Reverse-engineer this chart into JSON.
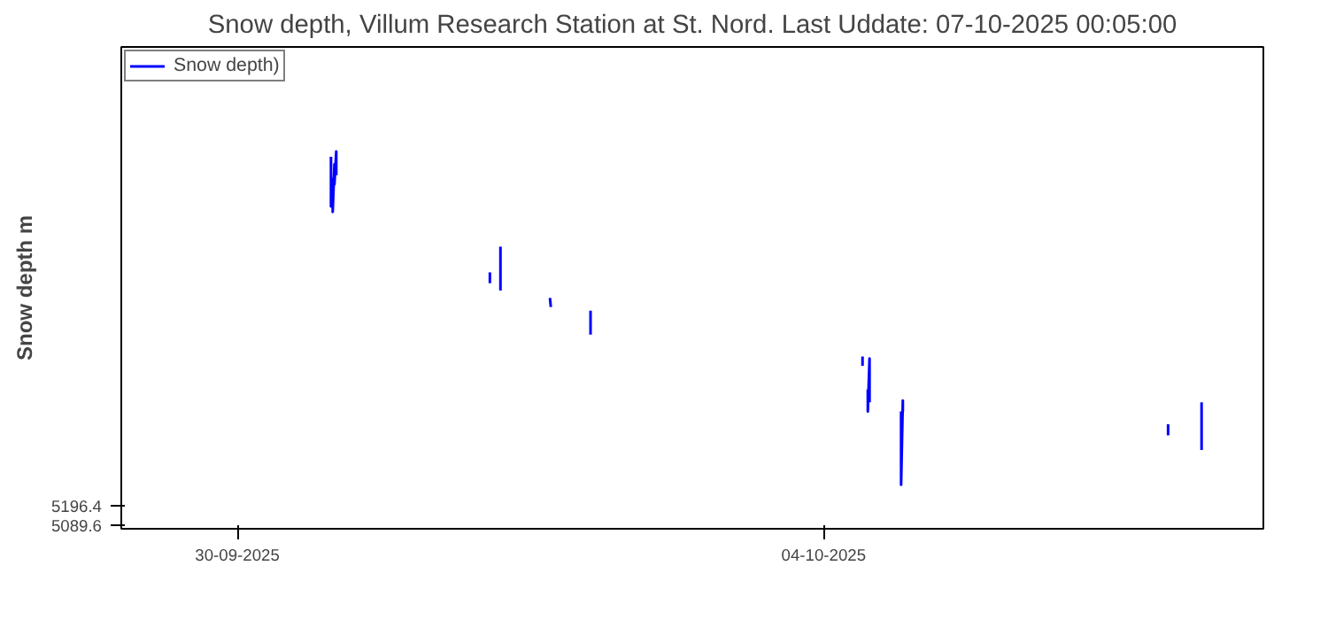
{
  "chart_data": {
    "type": "line",
    "title": "Snow depth, Villum Research Station at St. Nord. Last Uddate: 07-10-2025 00:05:00",
    "ylabel": "Snow depth m",
    "xlim": [
      "2025-09-29T05:00",
      "2025-10-07T00:00"
    ],
    "xticks": [
      {
        "value": "2025-09-30",
        "label": "30-09-2025"
      },
      {
        "value": "2025-10-04",
        "label": "04-10-2025"
      }
    ],
    "ylim": [
      5070,
      7700
    ],
    "yticks": [
      5196.4,
      5089.6
    ],
    "grid": false,
    "legend": "top left",
    "series": [
      {
        "name": "Snow depth)",
        "color": "#0000ff",
        "x": [
          "2025-09-30T15:20",
          "2025-09-30T15:20",
          "2025-09-30T15:37",
          "2025-09-30T15:37",
          "2025-09-30T15:54",
          "2025-09-30T15:54",
          "2025-09-30T16:12",
          "2025-09-30T16:12",
          "2025-09-30T16:30",
          "2025-10-01T17:21",
          "2025-10-01T17:21",
          "2025-10-01T17:45",
          "2025-10-01T19:05",
          "2025-10-01T19:05",
          "2025-10-01T19:10",
          "2025-10-02T03:11",
          "2025-10-02T03:20",
          "2025-10-02T03:30",
          "2025-10-02T09:50",
          "2025-10-02T09:50",
          "2025-10-02T10:00",
          "2025-10-04T06:22",
          "2025-10-04T06:22",
          "2025-10-04T06:40",
          "2025-10-04T07:14",
          "2025-10-04T07:14",
          "2025-10-04T07:31",
          "2025-10-04T07:31",
          "2025-10-04T07:40",
          "2025-10-04T12:41",
          "2025-10-04T12:41",
          "2025-10-04T12:58",
          "2025-10-04T12:58",
          "2025-10-04T13:10",
          "2025-10-06T08:24",
          "2025-10-06T08:24",
          "2025-10-06T08:30",
          "2025-10-06T13:53",
          "2025-10-06T13:53"
        ],
        "values": [
          7100,
          6830,
          6980,
          6800,
          7060,
          6950,
          7130,
          7000,
          null,
          6470,
          6410,
          null,
          6610,
          6370,
          null,
          6330,
          6280,
          null,
          6260,
          6130,
          null,
          6010,
          5960,
          null,
          5830,
          5710,
          6000,
          5760,
          null,
          5710,
          5310,
          5770,
          5710,
          null,
          5640,
          5580,
          null,
          5760,
          5500
        ]
      }
    ]
  }
}
